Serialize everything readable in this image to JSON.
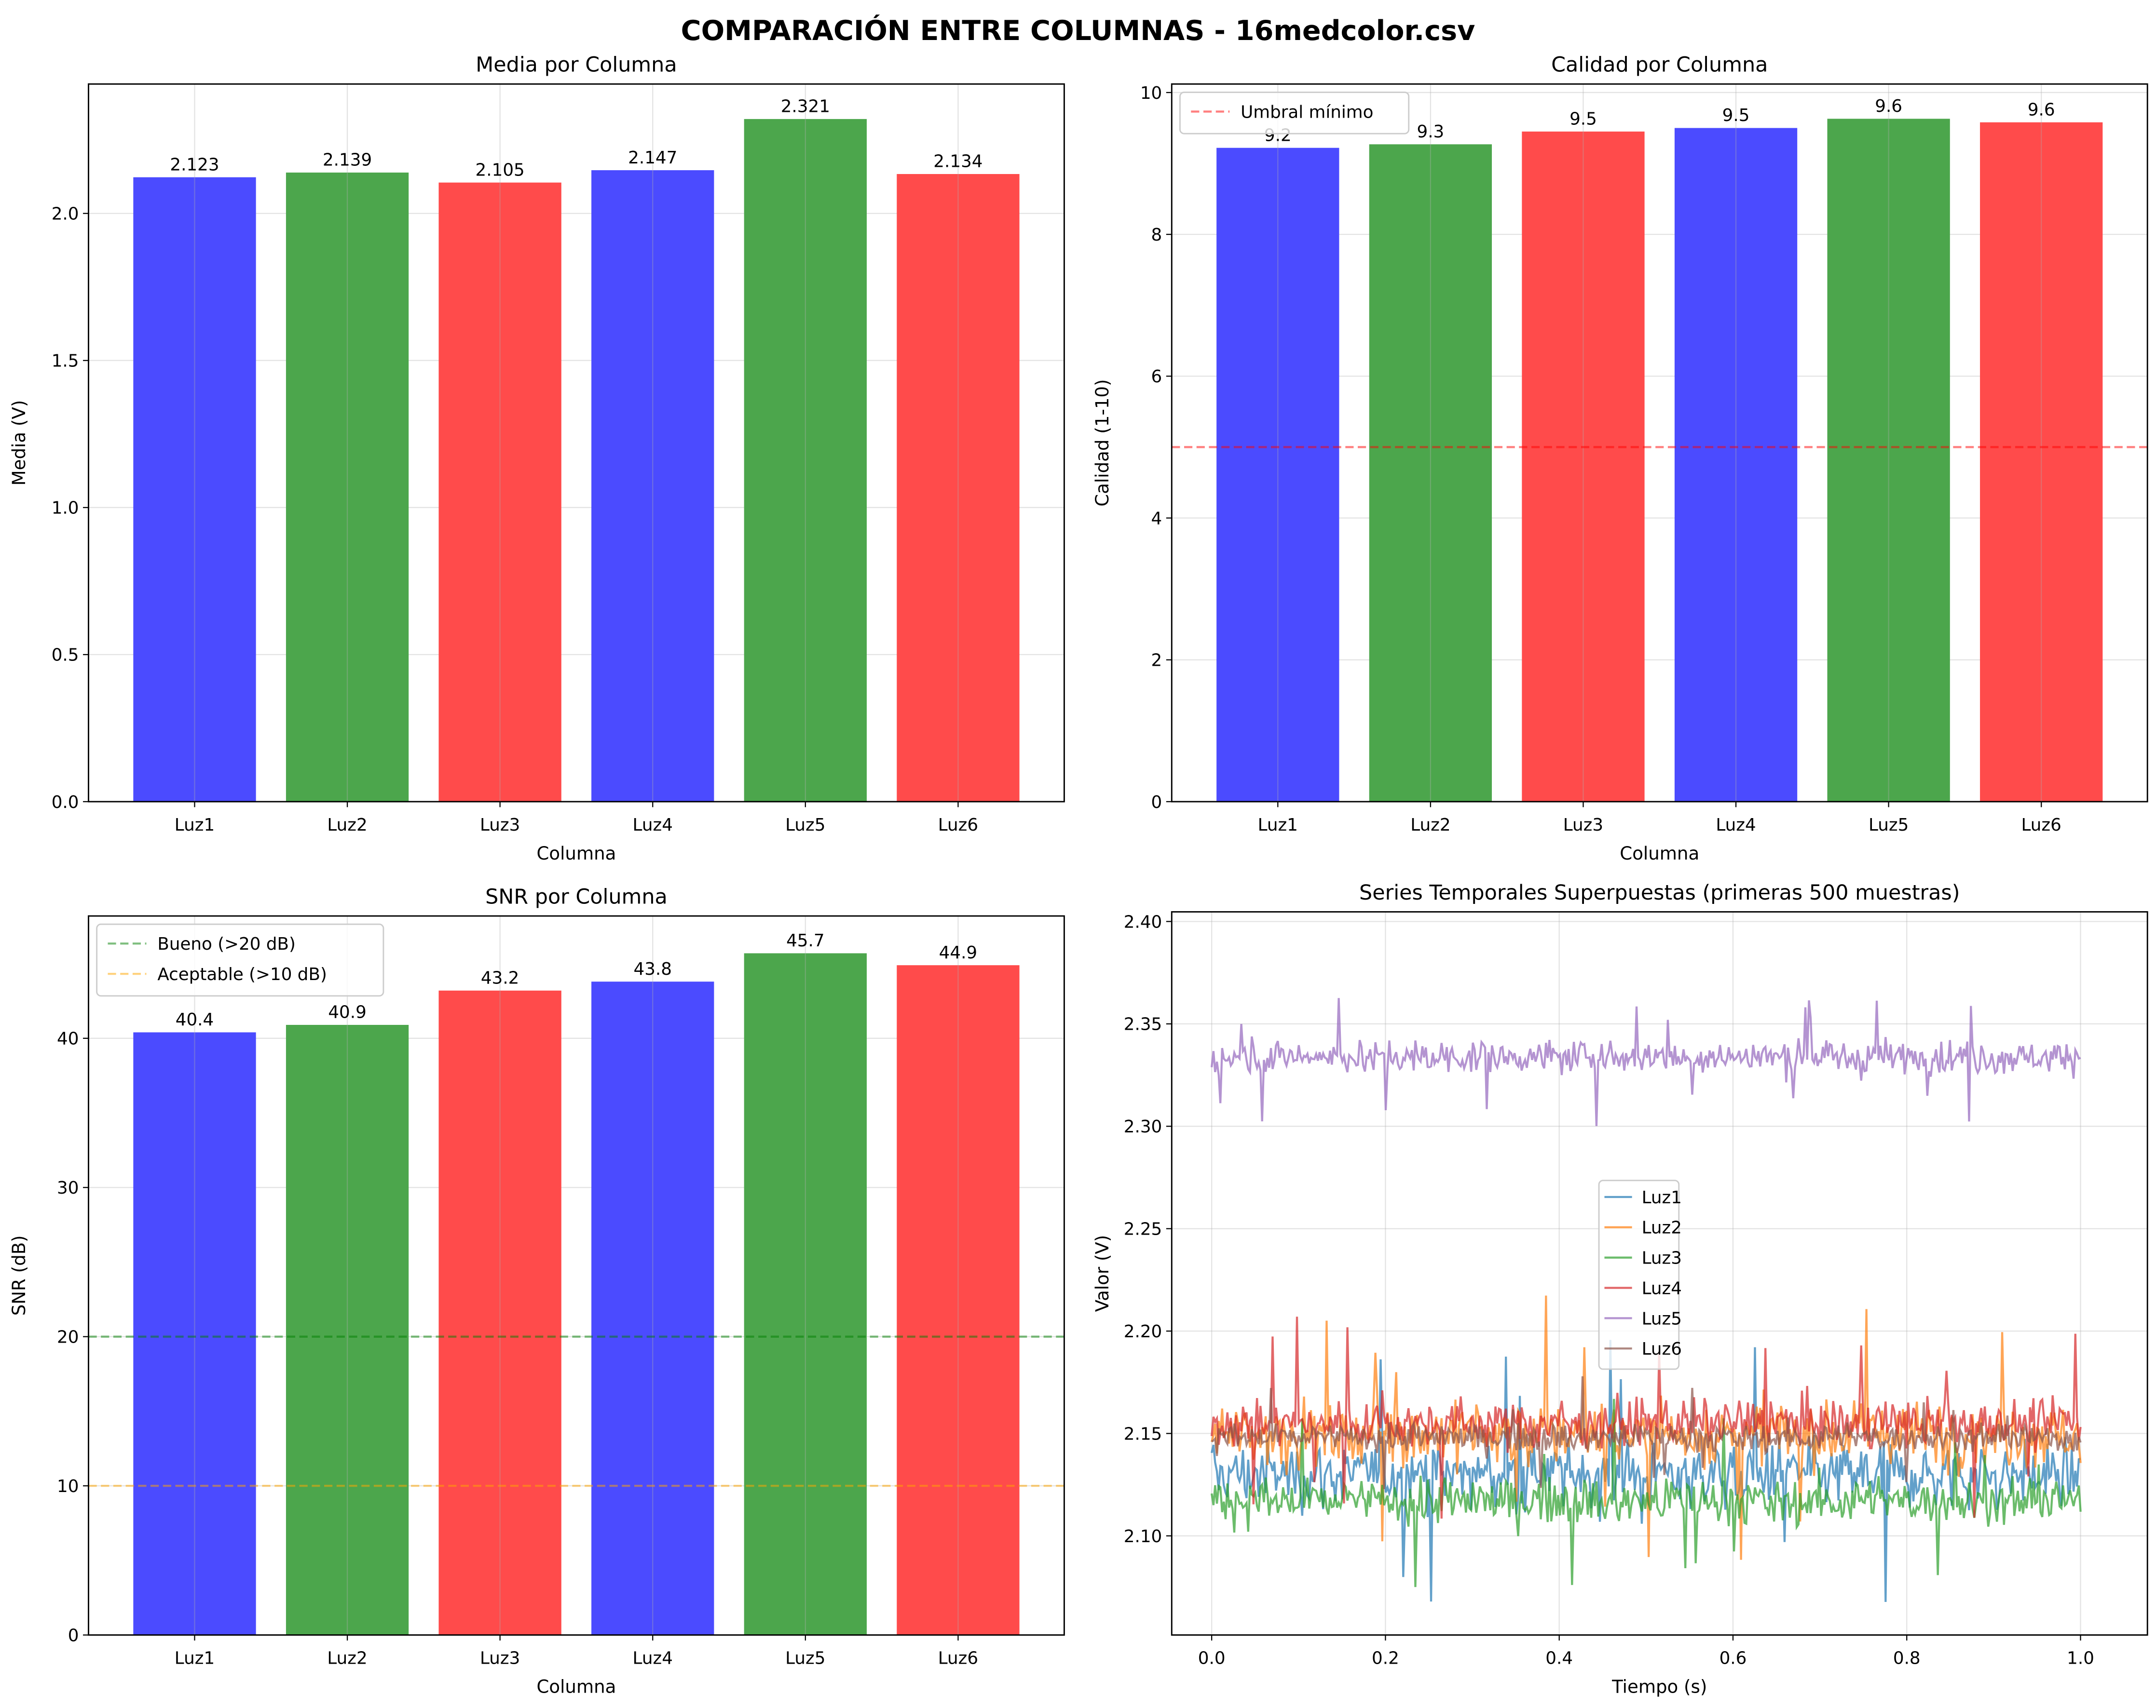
{
  "title": "COMPARACIÓN ENTRE COLUMNAS - 16medcolor.csv",
  "colors": {
    "blue": "#4b4bff",
    "green": "#4ca64c",
    "red": "#ff4b4b"
  },
  "chart_data": [
    {
      "type": "bar",
      "title": "Media por Columna",
      "xlabel": "Columna",
      "ylabel": "Media (V)",
      "categories": [
        "Luz1",
        "Luz2",
        "Luz3",
        "Luz4",
        "Luz5",
        "Luz6"
      ],
      "values": [
        2.123,
        2.139,
        2.105,
        2.147,
        2.321,
        2.134
      ],
      "labels": [
        "2.123",
        "2.139",
        "2.105",
        "2.147",
        "2.321",
        "2.134"
      ],
      "bar_colors": [
        "blue",
        "green",
        "red",
        "blue",
        "green",
        "red"
      ],
      "ylim": [
        0,
        2.44
      ],
      "yticks": [
        0,
        0.5,
        1.0,
        1.5,
        2.0
      ],
      "ytick_labels": [
        "0.0",
        "0.5",
        "1.0",
        "1.5",
        "2.0"
      ],
      "grid": true
    },
    {
      "type": "bar",
      "title": "Calidad por Columna",
      "xlabel": "Columna",
      "ylabel": "Calidad (1-10)",
      "categories": [
        "Luz1",
        "Luz2",
        "Luz3",
        "Luz4",
        "Luz5",
        "Luz6"
      ],
      "values": [
        9.22,
        9.27,
        9.45,
        9.5,
        9.63,
        9.58
      ],
      "labels": [
        "9.2",
        "9.3",
        "9.5",
        "9.5",
        "9.6",
        "9.6"
      ],
      "bar_colors": [
        "blue",
        "green",
        "red",
        "blue",
        "green",
        "red"
      ],
      "ylim": [
        0,
        10.12
      ],
      "yticks": [
        0,
        2,
        4,
        6,
        8,
        10
      ],
      "ytick_labels": [
        "0",
        "2",
        "4",
        "6",
        "8",
        "10"
      ],
      "hlines": [
        {
          "y": 5,
          "color": "#ff0000",
          "label": "Umbral mínimo"
        }
      ],
      "legend": "top-left",
      "grid": true
    },
    {
      "type": "bar",
      "title": "SNR por Columna",
      "xlabel": "Columna",
      "ylabel": "SNR (dB)",
      "categories": [
        "Luz1",
        "Luz2",
        "Luz3",
        "Luz4",
        "Luz5",
        "Luz6"
      ],
      "values": [
        40.4,
        40.9,
        43.2,
        43.8,
        45.7,
        44.9
      ],
      "labels": [
        "40.4",
        "40.9",
        "43.2",
        "43.8",
        "45.7",
        "44.9"
      ],
      "bar_colors": [
        "blue",
        "green",
        "red",
        "blue",
        "green",
        "red"
      ],
      "ylim": [
        0,
        48.2
      ],
      "yticks": [
        0,
        10,
        20,
        30,
        40
      ],
      "ytick_labels": [
        "0",
        "10",
        "20",
        "30",
        "40"
      ],
      "hlines": [
        {
          "y": 20,
          "color": "#008000",
          "label": "Bueno (>20 dB)"
        },
        {
          "y": 10,
          "color": "#ffa500",
          "label": "Aceptable (>10 dB)"
        }
      ],
      "legend": "top-left",
      "grid": true
    },
    {
      "type": "line",
      "title": "Series Temporales Superpuestas (primeras 500 muestras)",
      "xlabel": "Tiempo (s)",
      "ylabel": "Valor (V)",
      "xlim": [
        -0.046,
        1.077
      ],
      "ylim": [
        2.0516,
        2.4047
      ],
      "xticks": [
        0,
        0.2,
        0.4,
        0.6,
        0.8,
        1.0
      ],
      "xtick_labels": [
        "0.0",
        "0.2",
        "0.4",
        "0.6",
        "0.8",
        "1.0"
      ],
      "yticks": [
        2.1,
        2.15,
        2.2,
        2.25,
        2.3,
        2.35,
        2.4
      ],
      "ytick_labels": [
        "2.10",
        "2.15",
        "2.20",
        "2.25",
        "2.30",
        "2.35",
        "2.40"
      ],
      "n_samples": 500,
      "series": [
        {
          "name": "Luz1",
          "color": "#1f77b4",
          "mean": 2.13,
          "std": 0.014
        },
        {
          "name": "Luz2",
          "color": "#ff7f0e",
          "mean": 2.15,
          "std": 0.014
        },
        {
          "name": "Luz3",
          "color": "#2ca02c",
          "mean": 2.117,
          "std": 0.01
        },
        {
          "name": "Luz4",
          "color": "#d62728",
          "mean": 2.155,
          "std": 0.01
        },
        {
          "name": "Luz5",
          "color": "#9467bd",
          "mean": 2.334,
          "std": 0.007
        },
        {
          "name": "Luz6",
          "color": "#8c564b",
          "mean": 2.148,
          "std": 0.006
        }
      ],
      "legend": "center",
      "grid": true
    }
  ]
}
